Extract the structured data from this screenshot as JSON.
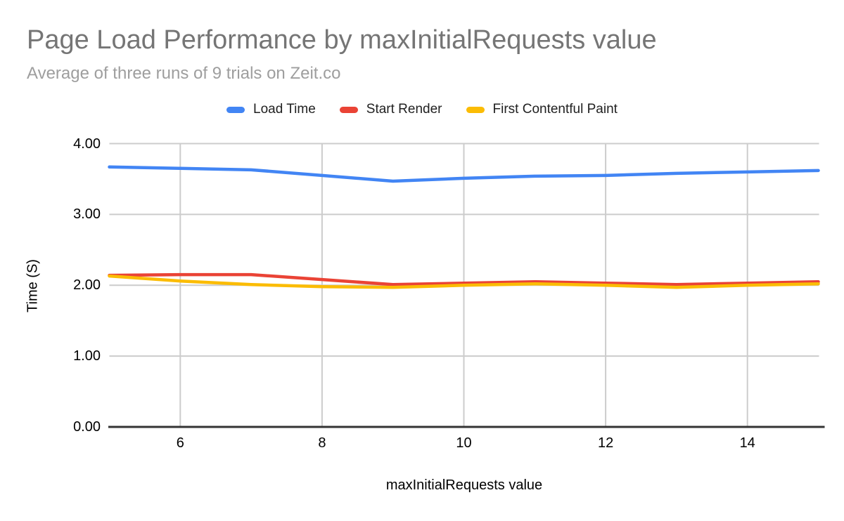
{
  "chart_data": {
    "type": "line",
    "title": "Page Load Performance by maxInitialRequests value",
    "subtitle": "Average of three runs of 9 trials on Zeit.co",
    "xlabel": "maxInitialRequests value",
    "ylabel": "Time (S)",
    "x": [
      5,
      6,
      7,
      8,
      9,
      10,
      11,
      12,
      13,
      14,
      15
    ],
    "series": [
      {
        "name": "Load Time",
        "color": "#4285f4",
        "values": [
          3.67,
          3.65,
          3.63,
          3.55,
          3.47,
          3.51,
          3.54,
          3.55,
          3.58,
          3.6,
          3.62
        ]
      },
      {
        "name": "Start Render",
        "color": "#ea4335",
        "values": [
          2.14,
          2.15,
          2.15,
          2.08,
          2.01,
          2.03,
          2.05,
          2.03,
          2.01,
          2.03,
          2.05
        ]
      },
      {
        "name": "First Contentful Paint",
        "color": "#fbbc04",
        "values": [
          2.13,
          2.06,
          2.01,
          1.98,
          1.97,
          2.0,
          2.02,
          2.0,
          1.97,
          2.0,
          2.02
        ]
      }
    ],
    "xlim": [
      5,
      15
    ],
    "ylim": [
      0,
      4
    ],
    "x_ticks": {
      "values": [
        6,
        8,
        10,
        12,
        14
      ],
      "labels": [
        "6",
        "8",
        "10",
        "12",
        "14"
      ]
    },
    "y_ticks": {
      "values": [
        0,
        1,
        2,
        3,
        4
      ],
      "labels": [
        "0.00",
        "1.00",
        "2.00",
        "3.00",
        "4.00"
      ]
    },
    "grid": true,
    "legend_position": "top"
  },
  "colors": {
    "background": "#ffffff",
    "title": "#757575",
    "subtitle": "#9e9e9e",
    "axis_text": "#000000",
    "grid": "#cccccc",
    "baseline": "#333333"
  }
}
